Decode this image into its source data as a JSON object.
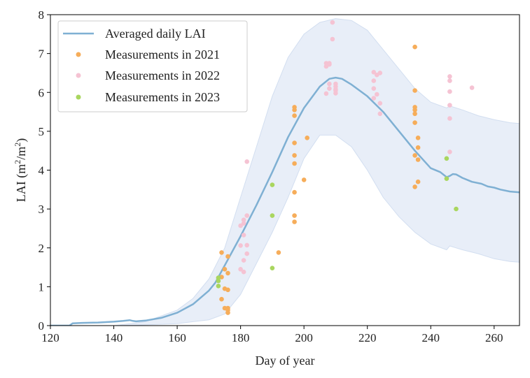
{
  "chart_data": {
    "type": "line",
    "xlabel": "Day of year",
    "ylabel_parts": [
      "LAI (m",
      "2",
      "/m",
      "2",
      ")"
    ],
    "xlim": [
      120,
      268
    ],
    "ylim": [
      0,
      8
    ],
    "xticks": [
      120,
      140,
      160,
      180,
      200,
      220,
      240,
      260
    ],
    "yticks": [
      0,
      1,
      2,
      3,
      4,
      5,
      6,
      7,
      8
    ],
    "grid": false,
    "legend_position": "top-left",
    "colors": {
      "line": "#7fb0d3",
      "band": "#e8eef8",
      "band_edge": "#d2def0",
      "m2021": "#f6ad5a",
      "m2022": "#f5c3d3",
      "m2023": "#a9d65f"
    },
    "series": [
      {
        "name": "Averaged daily LAI",
        "kind": "line",
        "x": [
          120,
          126,
          127,
          130,
          135,
          140,
          143,
          145,
          146,
          147,
          150,
          155,
          160,
          165,
          170,
          172,
          175,
          180,
          185,
          190,
          195,
          200,
          205,
          208,
          210,
          212,
          215,
          220,
          225,
          230,
          235,
          240,
          243,
          245,
          246,
          247,
          248,
          250,
          253,
          256,
          258,
          260,
          262,
          265,
          268
        ],
        "y": [
          0.0,
          0.0,
          0.06,
          0.07,
          0.08,
          0.1,
          0.12,
          0.14,
          0.12,
          0.11,
          0.13,
          0.2,
          0.33,
          0.55,
          0.9,
          1.1,
          1.55,
          2.3,
          3.1,
          3.95,
          4.85,
          5.6,
          6.15,
          6.35,
          6.38,
          6.35,
          6.2,
          5.9,
          5.5,
          5.0,
          4.5,
          4.05,
          3.95,
          3.82,
          3.85,
          3.9,
          3.89,
          3.8,
          3.7,
          3.65,
          3.58,
          3.55,
          3.5,
          3.45,
          3.43
        ]
      },
      {
        "name": "band",
        "kind": "band",
        "x": [
          120,
          140,
          145,
          150,
          160,
          165,
          170,
          175,
          180,
          185,
          190,
          195,
          200,
          205,
          210,
          215,
          220,
          225,
          230,
          235,
          240,
          245,
          246,
          248,
          250,
          255,
          260,
          265,
          268
        ],
        "lower": [
          0.0,
          0.0,
          0.01,
          0.02,
          0.05,
          0.1,
          0.15,
          0.3,
          0.8,
          1.6,
          2.4,
          3.3,
          4.3,
          4.9,
          4.9,
          4.6,
          4.0,
          3.3,
          2.8,
          2.4,
          2.1,
          1.95,
          2.05,
          2.0,
          1.95,
          1.85,
          1.72,
          1.65,
          1.63
        ],
        "upper": [
          0.0,
          0.0,
          0.05,
          0.1,
          0.4,
          0.7,
          1.2,
          2.0,
          3.3,
          4.6,
          5.9,
          6.9,
          7.5,
          7.8,
          7.9,
          7.85,
          7.6,
          7.1,
          6.6,
          6.1,
          5.75,
          5.6,
          5.65,
          5.6,
          5.55,
          5.4,
          5.3,
          5.22,
          5.2
        ]
      },
      {
        "name": "Measurements in 2021",
        "kind": "scatter",
        "points": [
          [
            174,
            1.88
          ],
          [
            176,
            1.78
          ],
          [
            175,
            1.45
          ],
          [
            176,
            1.35
          ],
          [
            174,
            1.25
          ],
          [
            175,
            0.95
          ],
          [
            176,
            0.92
          ],
          [
            174,
            0.68
          ],
          [
            175,
            0.45
          ],
          [
            176,
            0.45
          ],
          [
            176,
            0.4
          ],
          [
            176,
            0.33
          ],
          [
            197,
            5.62
          ],
          [
            197,
            5.55
          ],
          [
            197,
            5.4
          ],
          [
            201,
            4.83
          ],
          [
            197,
            4.7
          ],
          [
            197,
            4.38
          ],
          [
            197,
            4.17
          ],
          [
            200,
            3.75
          ],
          [
            197,
            3.43
          ],
          [
            197,
            2.83
          ],
          [
            197,
            2.67
          ],
          [
            192,
            1.88
          ],
          [
            235,
            7.17
          ],
          [
            235,
            6.05
          ],
          [
            235,
            5.62
          ],
          [
            235,
            5.55
          ],
          [
            235,
            5.45
          ],
          [
            235,
            5.22
          ],
          [
            236,
            4.83
          ],
          [
            236,
            4.58
          ],
          [
            235,
            4.38
          ],
          [
            236,
            4.27
          ],
          [
            236,
            3.7
          ],
          [
            235,
            3.57
          ]
        ]
      },
      {
        "name": "Measurements in 2022",
        "kind": "scatter",
        "points": [
          [
            182,
            4.22
          ],
          [
            182,
            2.83
          ],
          [
            181,
            2.72
          ],
          [
            181,
            2.63
          ],
          [
            180,
            2.57
          ],
          [
            181,
            2.33
          ],
          [
            182,
            2.07
          ],
          [
            180,
            2.06
          ],
          [
            182,
            1.85
          ],
          [
            181,
            1.68
          ],
          [
            180,
            1.45
          ],
          [
            181,
            1.38
          ],
          [
            209,
            7.8
          ],
          [
            209,
            7.37
          ],
          [
            207,
            6.75
          ],
          [
            208,
            6.75
          ],
          [
            208,
            6.72
          ],
          [
            207,
            6.67
          ],
          [
            208,
            6.22
          ],
          [
            210,
            6.22
          ],
          [
            210,
            6.15
          ],
          [
            208,
            6.1
          ],
          [
            210,
            6.08
          ],
          [
            210,
            6.05
          ],
          [
            207,
            5.97
          ],
          [
            210,
            5.98
          ],
          [
            222,
            6.52
          ],
          [
            224,
            6.5
          ],
          [
            223,
            6.45
          ],
          [
            222,
            6.3
          ],
          [
            222,
            6.1
          ],
          [
            223,
            5.95
          ],
          [
            222,
            5.85
          ],
          [
            224,
            5.72
          ],
          [
            224,
            5.45
          ],
          [
            246,
            6.41
          ],
          [
            246,
            6.3
          ],
          [
            246,
            6.02
          ],
          [
            246,
            5.67
          ],
          [
            246,
            5.33
          ],
          [
            246,
            4.47
          ],
          [
            253,
            6.12
          ]
        ]
      },
      {
        "name": "Measurements in 2023",
        "kind": "scatter",
        "points": [
          [
            173,
            1.23
          ],
          [
            173,
            1.15
          ],
          [
            173,
            1.02
          ],
          [
            190,
            3.62
          ],
          [
            190,
            2.83
          ],
          [
            190,
            1.48
          ],
          [
            245,
            4.3
          ],
          [
            245,
            3.78
          ],
          [
            248,
            3.0
          ]
        ]
      }
    ]
  }
}
